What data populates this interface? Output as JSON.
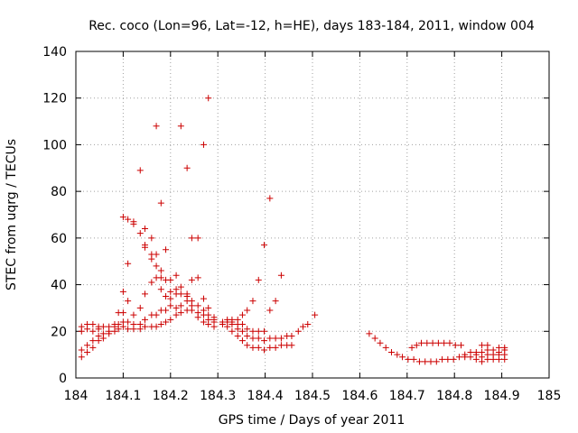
{
  "chart_data": {
    "type": "scatter",
    "title": "Rec. coco (Lon=96, Lat=-12, h=HE), days 183-184, 2011, window 004",
    "xlabel": "GPS time / Days of year 2011",
    "ylabel": "STEC from uqrg / TECUs",
    "xlim": [
      184,
      185
    ],
    "ylim": [
      0,
      140
    ],
    "xticks": [
      "184",
      "184.1",
      "184.2",
      "184.3",
      "184.4",
      "184.5",
      "184.6",
      "184.7",
      "184.8",
      "184.9",
      "185"
    ],
    "yticks": [
      "0",
      "20",
      "40",
      "60",
      "80",
      "100",
      "120",
      "140"
    ],
    "grid": true,
    "marker": "+",
    "marker_color": "#cc0000",
    "points": [
      [
        184.012,
        9
      ],
      [
        184.012,
        12
      ],
      [
        184.012,
        20
      ],
      [
        184.012,
        22
      ],
      [
        184.024,
        11
      ],
      [
        184.024,
        14
      ],
      [
        184.024,
        21
      ],
      [
        184.024,
        23
      ],
      [
        184.036,
        13
      ],
      [
        184.036,
        16
      ],
      [
        184.036,
        20
      ],
      [
        184.036,
        23
      ],
      [
        184.048,
        16
      ],
      [
        184.048,
        18
      ],
      [
        184.048,
        21
      ],
      [
        184.048,
        22
      ],
      [
        184.058,
        17
      ],
      [
        184.058,
        19
      ],
      [
        184.058,
        22
      ],
      [
        184.07,
        19
      ],
      [
        184.07,
        20
      ],
      [
        184.07,
        22
      ],
      [
        184.082,
        20
      ],
      [
        184.082,
        22
      ],
      [
        184.082,
        23
      ],
      [
        184.09,
        21
      ],
      [
        184.09,
        23
      ],
      [
        184.09,
        28
      ],
      [
        184.1,
        22
      ],
      [
        184.1,
        24
      ],
      [
        184.1,
        28
      ],
      [
        184.1,
        37
      ],
      [
        184.1,
        69
      ],
      [
        184.11,
        21
      ],
      [
        184.11,
        24
      ],
      [
        184.11,
        33
      ],
      [
        184.11,
        49
      ],
      [
        184.11,
        68
      ],
      [
        184.122,
        21
      ],
      [
        184.122,
        23
      ],
      [
        184.122,
        27
      ],
      [
        184.122,
        66
      ],
      [
        184.122,
        67
      ],
      [
        184.136,
        21
      ],
      [
        184.136,
        23
      ],
      [
        184.136,
        30
      ],
      [
        184.136,
        62
      ],
      [
        184.136,
        89
      ],
      [
        184.146,
        22
      ],
      [
        184.146,
        25
      ],
      [
        184.146,
        36
      ],
      [
        184.146,
        56
      ],
      [
        184.146,
        57
      ],
      [
        184.146,
        64
      ],
      [
        184.16,
        22
      ],
      [
        184.16,
        27
      ],
      [
        184.16,
        41
      ],
      [
        184.16,
        51
      ],
      [
        184.16,
        53
      ],
      [
        184.16,
        60
      ],
      [
        184.17,
        22
      ],
      [
        184.17,
        27
      ],
      [
        184.17,
        43
      ],
      [
        184.17,
        48
      ],
      [
        184.17,
        53
      ],
      [
        184.17,
        108
      ],
      [
        184.18,
        23
      ],
      [
        184.18,
        29
      ],
      [
        184.18,
        38
      ],
      [
        184.18,
        43
      ],
      [
        184.18,
        46
      ],
      [
        184.18,
        75
      ],
      [
        184.19,
        24
      ],
      [
        184.19,
        29
      ],
      [
        184.19,
        35
      ],
      [
        184.19,
        42
      ],
      [
        184.19,
        55
      ],
      [
        184.2,
        25
      ],
      [
        184.2,
        31
      ],
      [
        184.2,
        34
      ],
      [
        184.2,
        37
      ],
      [
        184.2,
        42
      ],
      [
        184.212,
        27
      ],
      [
        184.212,
        30
      ],
      [
        184.212,
        36
      ],
      [
        184.212,
        38
      ],
      [
        184.212,
        44
      ],
      [
        184.222,
        28
      ],
      [
        184.222,
        31
      ],
      [
        184.222,
        36
      ],
      [
        184.222,
        39
      ],
      [
        184.222,
        108
      ],
      [
        184.235,
        29
      ],
      [
        184.235,
        33
      ],
      [
        184.235,
        35
      ],
      [
        184.235,
        36
      ],
      [
        184.235,
        90
      ],
      [
        184.245,
        29
      ],
      [
        184.245,
        31
      ],
      [
        184.245,
        33
      ],
      [
        184.245,
        42
      ],
      [
        184.245,
        60
      ],
      [
        184.258,
        26
      ],
      [
        184.258,
        28
      ],
      [
        184.258,
        31
      ],
      [
        184.258,
        43
      ],
      [
        184.258,
        60
      ],
      [
        184.27,
        24
      ],
      [
        184.27,
        27
      ],
      [
        184.27,
        29
      ],
      [
        184.27,
        34
      ],
      [
        184.27,
        100
      ],
      [
        184.28,
        23
      ],
      [
        184.28,
        25
      ],
      [
        184.28,
        27
      ],
      [
        184.28,
        30
      ],
      [
        184.28,
        120
      ],
      [
        184.292,
        22
      ],
      [
        184.292,
        24
      ],
      [
        184.292,
        25
      ],
      [
        184.292,
        26
      ],
      [
        184.31,
        23
      ],
      [
        184.31,
        24
      ],
      [
        184.32,
        22
      ],
      [
        184.32,
        24
      ],
      [
        184.32,
        25
      ],
      [
        184.33,
        20
      ],
      [
        184.33,
        23
      ],
      [
        184.33,
        24
      ],
      [
        184.33,
        25
      ],
      [
        184.342,
        18
      ],
      [
        184.342,
        21
      ],
      [
        184.342,
        23
      ],
      [
        184.342,
        25
      ],
      [
        184.352,
        16
      ],
      [
        184.352,
        20
      ],
      [
        184.352,
        23
      ],
      [
        184.352,
        27
      ],
      [
        184.362,
        14
      ],
      [
        184.362,
        18
      ],
      [
        184.362,
        21
      ],
      [
        184.362,
        29
      ],
      [
        184.374,
        13
      ],
      [
        184.374,
        17
      ],
      [
        184.374,
        20
      ],
      [
        184.374,
        33
      ],
      [
        184.386,
        13
      ],
      [
        184.386,
        17
      ],
      [
        184.386,
        20
      ],
      [
        184.386,
        42
      ],
      [
        184.398,
        12
      ],
      [
        184.398,
        16
      ],
      [
        184.398,
        20
      ],
      [
        184.398,
        57
      ],
      [
        184.41,
        13
      ],
      [
        184.41,
        17
      ],
      [
        184.41,
        29
      ],
      [
        184.41,
        77
      ],
      [
        184.422,
        13
      ],
      [
        184.422,
        17
      ],
      [
        184.422,
        33
      ],
      [
        184.434,
        14
      ],
      [
        184.434,
        17
      ],
      [
        184.434,
        44
      ],
      [
        184.446,
        14
      ],
      [
        184.446,
        18
      ],
      [
        184.456,
        14
      ],
      [
        184.456,
        18
      ],
      [
        184.47,
        20
      ],
      [
        184.48,
        22
      ],
      [
        184.49,
        23
      ],
      [
        184.505,
        27
      ],
      [
        184.62,
        19
      ],
      [
        184.632,
        17
      ],
      [
        184.643,
        15
      ],
      [
        184.655,
        13
      ],
      [
        184.667,
        11
      ],
      [
        184.679,
        10
      ],
      [
        184.69,
        9
      ],
      [
        184.702,
        8
      ],
      [
        184.71,
        13
      ],
      [
        184.714,
        8
      ],
      [
        184.72,
        14
      ],
      [
        184.726,
        7
      ],
      [
        184.73,
        15
      ],
      [
        184.738,
        7
      ],
      [
        184.742,
        15
      ],
      [
        184.75,
        7
      ],
      [
        184.754,
        15
      ],
      [
        184.762,
        7
      ],
      [
        184.766,
        15
      ],
      [
        184.774,
        8
      ],
      [
        184.778,
        15
      ],
      [
        184.786,
        8
      ],
      [
        184.79,
        15
      ],
      [
        184.798,
        8
      ],
      [
        184.802,
        14
      ],
      [
        184.81,
        9
      ],
      [
        184.814,
        14
      ],
      [
        184.822,
        9
      ],
      [
        184.822,
        10
      ],
      [
        184.834,
        9
      ],
      [
        184.834,
        11
      ],
      [
        184.846,
        8
      ],
      [
        184.846,
        10
      ],
      [
        184.846,
        11
      ],
      [
        184.858,
        7
      ],
      [
        184.858,
        9
      ],
      [
        184.858,
        11
      ],
      [
        184.858,
        14
      ],
      [
        184.87,
        8
      ],
      [
        184.87,
        10
      ],
      [
        184.87,
        12
      ],
      [
        184.87,
        14
      ],
      [
        184.882,
        8
      ],
      [
        184.882,
        10
      ],
      [
        184.882,
        12
      ],
      [
        184.894,
        8
      ],
      [
        184.894,
        10
      ],
      [
        184.894,
        11
      ],
      [
        184.894,
        13
      ],
      [
        184.906,
        8
      ],
      [
        184.906,
        10
      ],
      [
        184.906,
        12
      ],
      [
        184.906,
        13
      ]
    ]
  }
}
